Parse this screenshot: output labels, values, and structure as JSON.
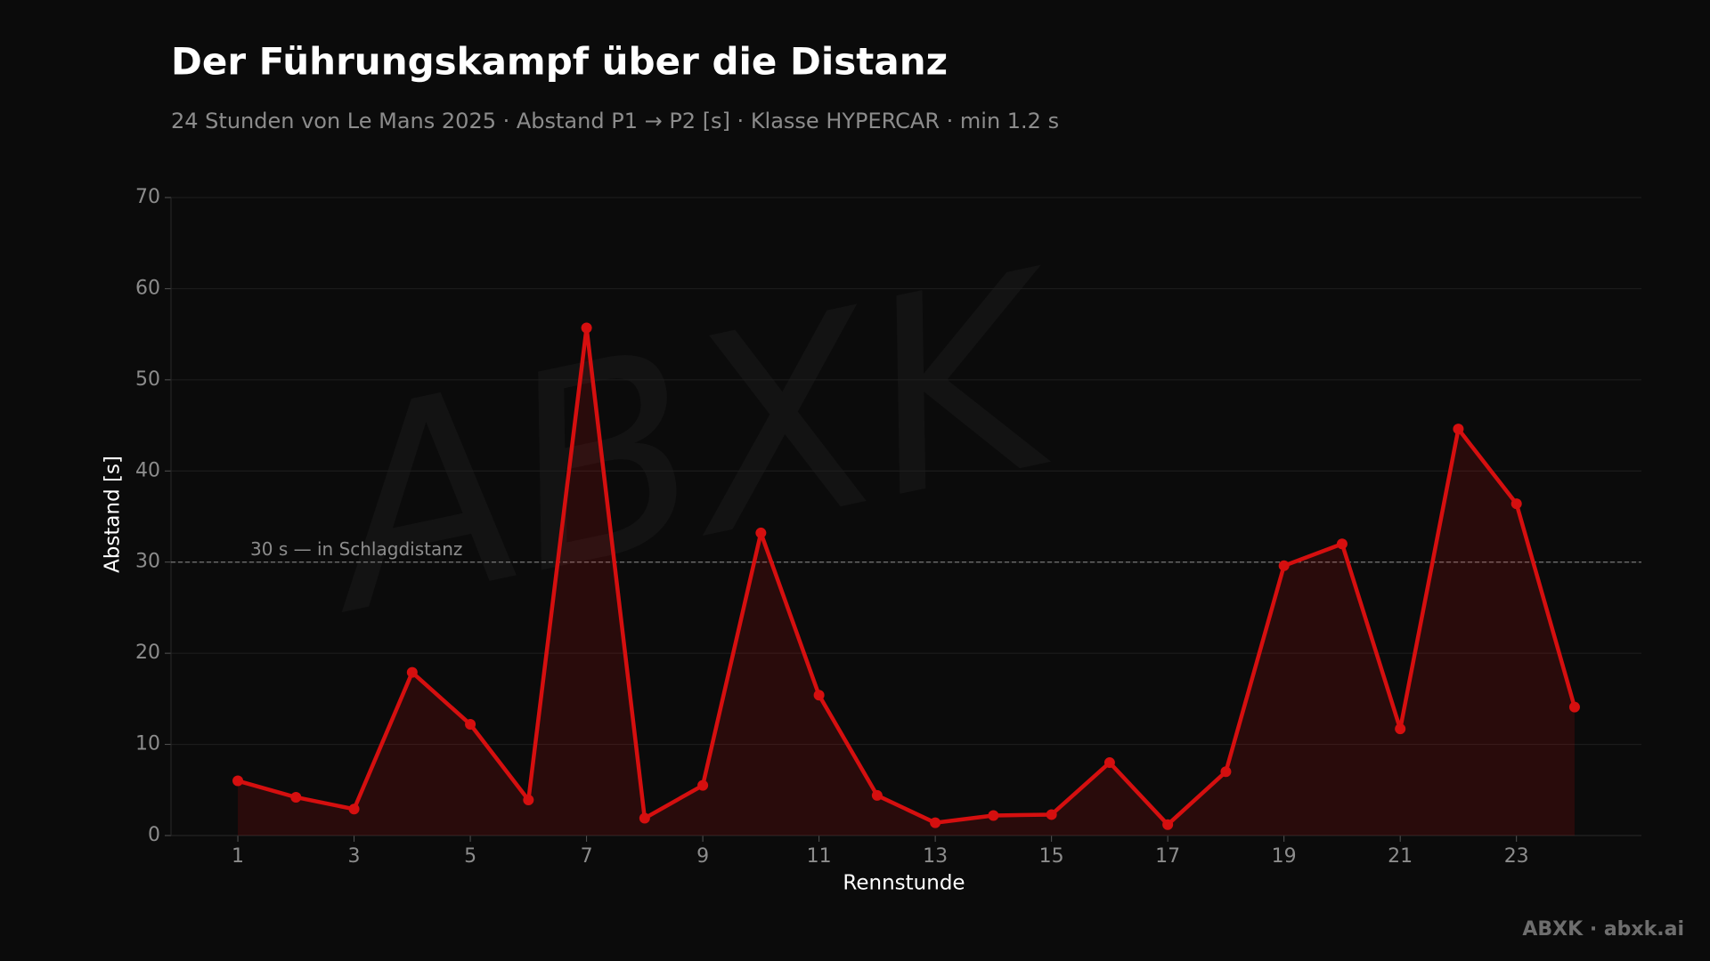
{
  "chart_data": {
    "type": "line",
    "title": "Der Führungskampf über die Distanz",
    "subtitle": "24 Stunden von Le Mans 2025 · Abstand P1 → P2 [s] · Klasse HYPERCAR · min 1.2 s",
    "x_label": "Rennstunde",
    "y_label": "Abstand [s]",
    "x": [
      1,
      2,
      3,
      4,
      5,
      6,
      7,
      8,
      9,
      10,
      11,
      12,
      13,
      14,
      15,
      16,
      17,
      18,
      19,
      20,
      21,
      22,
      23,
      24
    ],
    "values": [
      6.0,
      4.2,
      2.9,
      17.9,
      12.2,
      3.9,
      55.7,
      1.9,
      5.5,
      33.2,
      15.4,
      4.4,
      1.4,
      2.2,
      2.3,
      8.0,
      1.2,
      7.0,
      29.6,
      32.0,
      11.7,
      44.6,
      36.4,
      14.1
    ],
    "color": "#d50f0f",
    "area": true,
    "xlim": [
      -0.15,
      25.15
    ],
    "xticks": [
      1,
      3,
      5,
      7,
      9,
      11,
      13,
      15,
      17,
      19,
      21,
      23
    ],
    "ylim": [
      0,
      70
    ],
    "yticks": [
      0,
      10,
      20,
      30,
      40,
      50,
      60,
      70
    ],
    "grid": true,
    "reference_line": {
      "value": 30,
      "label": "30 s — in Schlagdistanz"
    },
    "watermark": "ABXK",
    "footer": "ABXK · abxk.ai"
  }
}
